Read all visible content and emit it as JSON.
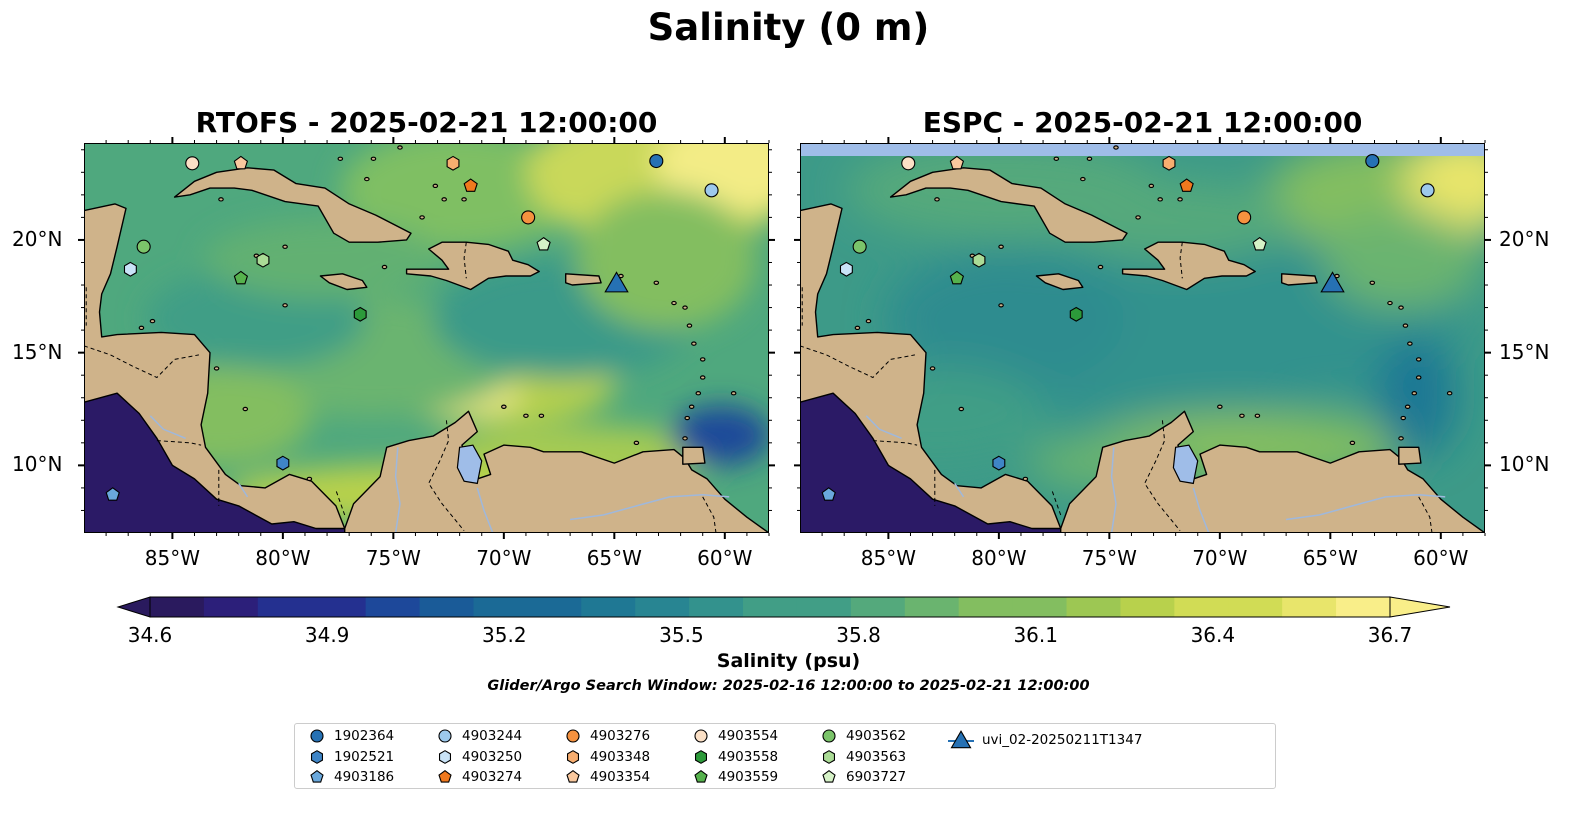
{
  "title": "Salinity (0 m)",
  "panels": [
    {
      "title": "RTOFS - 2025-02-21 12:00:00",
      "model": "RTOFS"
    },
    {
      "title": "ESPC - 2025-02-21 12:00:00",
      "model": "ESPC"
    }
  ],
  "map": {
    "lon_range": [
      -89,
      -58
    ],
    "lat_range": [
      7,
      24.3
    ],
    "lon_ticks": [
      {
        "value": -85,
        "label": "85°W"
      },
      {
        "value": -80,
        "label": "80°W"
      },
      {
        "value": -75,
        "label": "75°W"
      },
      {
        "value": -70,
        "label": "70°W"
      },
      {
        "value": -65,
        "label": "65°W"
      },
      {
        "value": -60,
        "label": "60°W"
      }
    ],
    "lat_ticks": [
      {
        "value": 20,
        "label": "20°N"
      },
      {
        "value": 15,
        "label": "15°N"
      },
      {
        "value": 10,
        "label": "10°N"
      }
    ],
    "colors": {
      "land": "#cfb38a",
      "pacific": "#2b1a66",
      "no_data": "#9fbde8",
      "lake": "#9fbde8"
    }
  },
  "colorbar": {
    "label": "Salinity (psu)",
    "min": 34.6,
    "max": 36.7,
    "ticks": [
      "34.6",
      "34.9",
      "35.2",
      "35.5",
      "35.8",
      "36.1",
      "36.4",
      "36.7"
    ],
    "extend": "both",
    "colormap": "haline"
  },
  "search_window": "Glider/Argo Search Window: 2025-02-16 12:00:00 to 2025-02-21 12:00:00",
  "platforms": [
    {
      "id": "1902364",
      "marker": "circle",
      "color": "#2671b4",
      "lon": -63.1,
      "lat": 23.5
    },
    {
      "id": "1902521",
      "marker": "hexagon",
      "color": "#3f85c6",
      "lon": -80.0,
      "lat": 10.1
    },
    {
      "id": "4903186",
      "marker": "pentagon",
      "color": "#6aa8dc",
      "lon": -87.7,
      "lat": 8.7
    },
    {
      "id": "4903244",
      "marker": "circle",
      "color": "#9dc9ec",
      "lon": -60.6,
      "lat": 22.2
    },
    {
      "id": "4903250",
      "marker": "hexagon",
      "color": "#c9e3f7",
      "lon": -86.9,
      "lat": 18.7
    },
    {
      "id": "4903274",
      "marker": "pentagon",
      "color": "#f0791e",
      "lon": -71.5,
      "lat": 22.4
    },
    {
      "id": "4903276",
      "marker": "circle",
      "color": "#f5923f",
      "lon": -68.9,
      "lat": 21.0
    },
    {
      "id": "4903348",
      "marker": "hexagon",
      "color": "#f8ae70",
      "lon": -72.3,
      "lat": 23.4
    },
    {
      "id": "4903354",
      "marker": "pentagon",
      "color": "#f9c89e",
      "lon": -81.9,
      "lat": 23.4
    },
    {
      "id": "4903554",
      "marker": "circle",
      "color": "#fbe0c6",
      "lon": -84.1,
      "lat": 23.4
    },
    {
      "id": "4903558",
      "marker": "hexagon",
      "color": "#2c9a3a",
      "lon": -76.5,
      "lat": 16.7
    },
    {
      "id": "4903559",
      "marker": "pentagon",
      "color": "#56b24d",
      "lon": -81.9,
      "lat": 18.3
    },
    {
      "id": "4903562",
      "marker": "circle",
      "color": "#7bc46a",
      "lon": -86.3,
      "lat": 19.7
    },
    {
      "id": "4903563",
      "marker": "hexagon",
      "color": "#abdc96",
      "lon": -80.9,
      "lat": 19.1
    },
    {
      "id": "6903727",
      "marker": "pentagon",
      "color": "#d6f2c7",
      "lon": -68.2,
      "lat": 19.8
    },
    {
      "id": "uvi_02-20250211T1347",
      "marker": "triangle",
      "color": "#2671b4",
      "lon": -64.9,
      "lat": 18.1
    }
  ]
}
